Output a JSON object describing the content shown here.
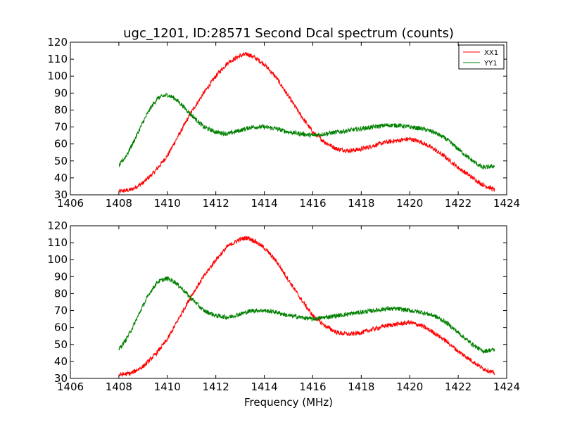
{
  "chart_data": [
    {
      "type": "line",
      "title": "ugc_1201, ID:28571 Second Dcal spectrum (counts)",
      "xlabel": "",
      "ylabel": "",
      "xlim": [
        1406,
        1424
      ],
      "ylim": [
        30,
        120
      ],
      "xticks": [
        1406,
        1408,
        1410,
        1412,
        1414,
        1416,
        1418,
        1420,
        1422,
        1424
      ],
      "yticks": [
        30,
        40,
        50,
        60,
        70,
        80,
        90,
        100,
        110,
        120
      ],
      "grid": false,
      "legend": "top-right",
      "series": [
        {
          "name": "XX1",
          "color": "#ff0000",
          "x": [
            1408.0,
            1408.5,
            1409.0,
            1409.5,
            1410.0,
            1410.5,
            1411.0,
            1411.5,
            1412.0,
            1412.5,
            1413.0,
            1413.3,
            1413.6,
            1414.0,
            1414.5,
            1415.0,
            1415.5,
            1416.0,
            1416.5,
            1417.0,
            1417.5,
            1418.0,
            1418.5,
            1419.0,
            1419.5,
            1420.0,
            1420.5,
            1421.0,
            1421.5,
            1422.0,
            1422.5,
            1423.0,
            1423.5
          ],
          "values": [
            32,
            33,
            37,
            44,
            53,
            66,
            79,
            90,
            100,
            108,
            112,
            113,
            111,
            107,
            99,
            88,
            77,
            67,
            61,
            57,
            56,
            57,
            59,
            61,
            62,
            63,
            61,
            57,
            52,
            46,
            41,
            36,
            33
          ]
        },
        {
          "name": "YY1",
          "color": "#008000",
          "x": [
            1408.0,
            1408.3,
            1408.6,
            1409.0,
            1409.3,
            1409.6,
            1410.0,
            1410.3,
            1410.6,
            1411.0,
            1411.5,
            1412.0,
            1412.5,
            1413.0,
            1413.5,
            1414.0,
            1414.5,
            1415.0,
            1415.5,
            1416.0,
            1416.5,
            1417.0,
            1417.5,
            1418.0,
            1418.5,
            1419.0,
            1419.5,
            1420.0,
            1420.5,
            1421.0,
            1421.5,
            1422.0,
            1422.5,
            1423.0,
            1423.5
          ],
          "values": [
            47,
            53,
            61,
            73,
            81,
            87,
            89,
            87,
            83,
            77,
            70,
            67,
            66,
            68,
            70,
            70,
            69,
            67,
            66,
            65,
            66,
            67,
            68,
            69,
            70,
            71,
            71,
            70,
            69,
            67,
            63,
            57,
            51,
            46,
            47
          ]
        }
      ]
    },
    {
      "type": "line",
      "title": "",
      "xlabel": "Frequency (MHz)",
      "ylabel": "",
      "xlim": [
        1406,
        1424
      ],
      "ylim": [
        30,
        120
      ],
      "xticks": [
        1406,
        1408,
        1410,
        1412,
        1414,
        1416,
        1418,
        1420,
        1422,
        1424
      ],
      "yticks": [
        30,
        40,
        50,
        60,
        70,
        80,
        90,
        100,
        110,
        120
      ],
      "grid": false,
      "series": [
        {
          "color": "#ff0000",
          "x": [
            1408.0,
            1408.5,
            1409.0,
            1409.5,
            1410.0,
            1410.5,
            1411.0,
            1411.5,
            1412.0,
            1412.5,
            1413.0,
            1413.3,
            1413.6,
            1414.0,
            1414.5,
            1415.0,
            1415.5,
            1416.0,
            1416.5,
            1417.0,
            1417.5,
            1418.0,
            1418.5,
            1419.0,
            1419.5,
            1420.0,
            1420.5,
            1421.0,
            1421.5,
            1422.0,
            1422.5,
            1423.0,
            1423.5
          ],
          "values": [
            32,
            33,
            37,
            44,
            53,
            66,
            79,
            90,
            100,
            108,
            112,
            113,
            111,
            107,
            99,
            88,
            77,
            67,
            61,
            57,
            56,
            57,
            59,
            61,
            62,
            63,
            61,
            57,
            52,
            46,
            41,
            36,
            33
          ]
        },
        {
          "color": "#008000",
          "x": [
            1408.0,
            1408.3,
            1408.6,
            1409.0,
            1409.3,
            1409.6,
            1410.0,
            1410.3,
            1410.6,
            1411.0,
            1411.5,
            1412.0,
            1412.5,
            1413.0,
            1413.5,
            1414.0,
            1414.5,
            1415.0,
            1415.5,
            1416.0,
            1416.5,
            1417.0,
            1417.5,
            1418.0,
            1418.5,
            1419.0,
            1419.5,
            1420.0,
            1420.5,
            1421.0,
            1421.5,
            1422.0,
            1422.5,
            1423.0,
            1423.5
          ],
          "values": [
            47,
            53,
            61,
            73,
            81,
            87,
            89,
            87,
            83,
            77,
            70,
            67,
            66,
            68,
            70,
            70,
            69,
            67,
            66,
            65,
            66,
            67,
            68,
            69,
            70,
            71,
            71,
            70,
            69,
            67,
            63,
            57,
            51,
            46,
            47
          ]
        }
      ]
    }
  ]
}
